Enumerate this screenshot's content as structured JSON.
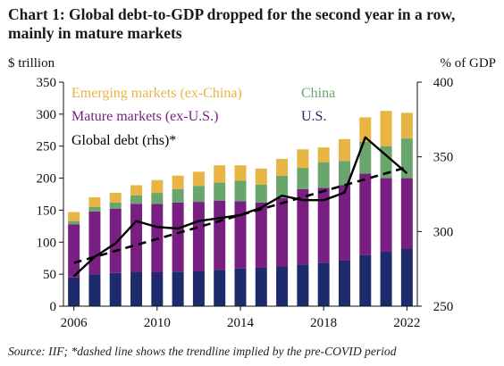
{
  "title": "Chart 1:  Global debt-to-GDP dropped for the second year in a row, mainly in mature markets",
  "source": "Source: IIF; *dashed line shows the trendline implied by the pre-COVID period",
  "colors": {
    "us": "#1d2a6b",
    "mature_ex_us": "#7a1f82",
    "china": "#6aa56d",
    "emerging_ex_china": "#e8b443",
    "line": "#000000",
    "axis": "#111111"
  },
  "chart_data": {
    "type": "bar",
    "stacked": true,
    "title": "Chart 1:  Global debt-to-GDP dropped for the second year in a row, mainly in mature markets",
    "ylabel": "$ trillion",
    "y2label": "% of GDP",
    "ylim": [
      0,
      350
    ],
    "y2lim": [
      250,
      400
    ],
    "yticks": [
      "0",
      "50",
      "100",
      "150",
      "200",
      "250",
      "300",
      "350"
    ],
    "y2ticks": [
      "250",
      "300",
      "350",
      "400"
    ],
    "x": [
      2006,
      2007,
      2008,
      2009,
      2010,
      2011,
      2012,
      2013,
      2014,
      2015,
      2016,
      2017,
      2018,
      2019,
      2020,
      2021,
      2022
    ],
    "xticks": [
      "2006",
      "2010",
      "2014",
      "2018",
      "2022"
    ],
    "series": [
      {
        "name": "U.S.",
        "key": "us",
        "values": [
          45,
          50,
          52,
          53,
          53,
          54,
          55,
          57,
          59,
          60,
          62,
          65,
          68,
          72,
          80,
          85,
          90
        ]
      },
      {
        "name": "Mature markets (ex-U.S.)",
        "key": "mature_ex_us",
        "values": [
          83,
          98,
          100,
          107,
          107,
          108,
          108,
          108,
          105,
          102,
          107,
          118,
          117,
          117,
          127,
          115,
          110
        ]
      },
      {
        "name": "China",
        "key": "china",
        "values": [
          5,
          7,
          10,
          13,
          17,
          21,
          25,
          28,
          32,
          28,
          35,
          33,
          40,
          38,
          50,
          50,
          62
        ]
      },
      {
        "name": "Emerging markets (ex-China)",
        "key": "emerging_ex_china",
        "values": [
          14,
          15,
          15,
          16,
          20,
          21,
          22,
          27,
          24,
          25,
          26,
          29,
          23,
          34,
          38,
          55,
          40
        ]
      }
    ],
    "line_series": {
      "name": "Global debt (rhs)*",
      "axis": "right",
      "values": [
        270,
        283,
        292,
        307,
        303,
        302,
        307,
        309,
        311,
        316,
        324,
        321,
        321,
        326,
        363,
        351,
        339
      ]
    },
    "trend_series": {
      "axis": "right",
      "x": [
        2006,
        2022
      ],
      "values": [
        279,
        343
      ]
    },
    "legend": [
      {
        "label": "Emerging markets (ex-China)",
        "key": "emerging_ex_china"
      },
      {
        "label": "China",
        "key": "china"
      },
      {
        "label": "Mature markets (ex-U.S.)",
        "key": "mature_ex_us"
      },
      {
        "label": "U.S.",
        "key": "us"
      },
      {
        "label": "Global debt (rhs)*",
        "key": "line"
      }
    ],
    "legend_placement": "top-left",
    "grid": false
  }
}
